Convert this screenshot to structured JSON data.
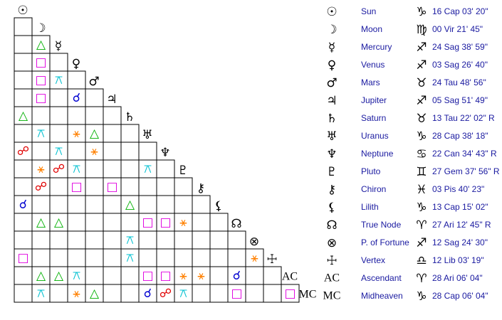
{
  "chart_data": {
    "type": "aspect-grid",
    "planets": [
      {
        "glyph": "☉",
        "name": "Sun",
        "sign": "♑",
        "position": "16 Cap 03' 20\""
      },
      {
        "glyph": "☽",
        "name": "Moon",
        "sign": "♍",
        "position": "00 Vir 21' 45\""
      },
      {
        "glyph": "☿",
        "name": "Mercury",
        "sign": "♐",
        "position": "24 Sag 38' 59\""
      },
      {
        "glyph": "♀",
        "name": "Venus",
        "sign": "♐",
        "position": "03 Sag 26' 40\""
      },
      {
        "glyph": "♂",
        "name": "Mars",
        "sign": "♉",
        "position": "24 Tau 48' 56\""
      },
      {
        "glyph": "♃",
        "name": "Jupiter",
        "sign": "♐",
        "position": "05 Sag 51' 49\""
      },
      {
        "glyph": "♄",
        "name": "Saturn",
        "sign": "♉",
        "position": "13 Tau 22' 02\" R"
      },
      {
        "glyph": "♅",
        "name": "Uranus",
        "sign": "♑",
        "position": "28 Cap 38' 18\""
      },
      {
        "glyph": "♆",
        "name": "Neptune",
        "sign": "♋",
        "position": "22 Can 34' 43\" R"
      },
      {
        "glyph": "♇",
        "name": "Pluto",
        "sign": "♊",
        "position": "27 Gem 37' 56\" R"
      },
      {
        "glyph": "⚷",
        "name": "Chiron",
        "sign": "♓",
        "position": "03 Pis 40' 23\""
      },
      {
        "glyph": "⚸",
        "name": "Lilith",
        "sign": "♑",
        "position": "13 Cap 15' 02\""
      },
      {
        "glyph": "☊",
        "name": "True Node",
        "sign": "♈",
        "position": "27 Ari 12' 45\" R"
      },
      {
        "glyph": "⊗",
        "name": "P. of Fortune",
        "sign": "♐",
        "position": "12 Sag 24' 30\""
      },
      {
        "glyph": "☩",
        "name": "Vertex",
        "sign": "♎",
        "position": "12 Lib 03' 19\""
      },
      {
        "glyph": "AC",
        "name": "Ascendant",
        "sign": "♈",
        "position": "28 Ari 06' 04\""
      },
      {
        "glyph": "MC",
        "name": "Midheaven",
        "sign": "♑",
        "position": "28 Cap 06' 04\""
      }
    ],
    "aspect_colors": {
      "△": "#00b000",
      "□": "#e000e0",
      "⚹": "#ff8000",
      "☍": "#e00000",
      "☌": "#0000d0",
      "⚻": "#00c0d0"
    },
    "aspects": [
      [
        null
      ],
      [
        null,
        "△"
      ],
      [
        null,
        "□",
        null
      ],
      [
        null,
        "□",
        "⚻",
        null
      ],
      [
        null,
        "□",
        null,
        "☌",
        null
      ],
      [
        "△",
        null,
        null,
        null,
        null,
        null
      ],
      [
        null,
        "⚻",
        null,
        "⚹",
        "△",
        null,
        null
      ],
      [
        "☍",
        null,
        "⚻",
        null,
        "⚹",
        null,
        null,
        null
      ],
      [
        null,
        "⚹",
        "☍",
        "⚻",
        null,
        null,
        null,
        "⚻",
        null
      ],
      [
        null,
        "☍",
        null,
        "□",
        null,
        "□",
        null,
        null,
        null,
        null
      ],
      [
        "☌",
        null,
        null,
        null,
        null,
        null,
        "△",
        null,
        null,
        null,
        null
      ],
      [
        null,
        "△",
        "△",
        null,
        null,
        null,
        null,
        "□",
        "□",
        "⚹",
        null,
        null
      ],
      [
        null,
        null,
        null,
        null,
        null,
        null,
        "⚻",
        null,
        null,
        null,
        null,
        null,
        null
      ],
      [
        "□",
        null,
        null,
        null,
        null,
        null,
        "⚻",
        null,
        null,
        null,
        null,
        null,
        null,
        "⚹"
      ],
      [
        null,
        "△",
        "△",
        "⚻",
        null,
        null,
        null,
        "□",
        "□",
        "⚹",
        "⚹",
        null,
        "☌",
        null,
        null
      ],
      [
        null,
        "⚻",
        null,
        "⚹",
        "△",
        null,
        null,
        "☌",
        "☍",
        "⚻",
        null,
        null,
        "□",
        null,
        null,
        "□"
      ]
    ]
  }
}
